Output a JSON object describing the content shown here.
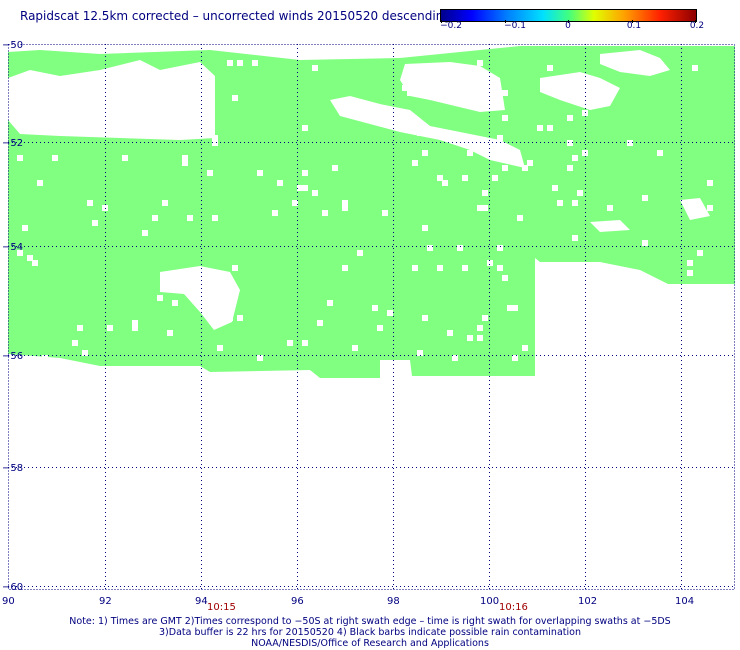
{
  "title": "Rapidscat 12.5km corrected – uncorrected winds 20150520 descending",
  "colorbar": {
    "labels": [
      "−0.2",
      "−0.1",
      "0",
      "0.1",
      "0.2"
    ],
    "min": -0.2,
    "max": 0.2
  },
  "axes": {
    "x_ticks": [
      "90",
      "92",
      "94",
      "96",
      "98",
      "100",
      "102",
      "104"
    ],
    "y_ticks": [
      "−50",
      "−52",
      "−54",
      "−56",
      "−58",
      "−60"
    ],
    "x_range": [
      90,
      105
    ],
    "y_range": [
      -50,
      -60
    ]
  },
  "time_labels": [
    {
      "text": "10:15",
      "lon": 94.4
    },
    {
      "text": "10:16",
      "lon": 100.6
    }
  ],
  "notes": {
    "line1": "Note: 1) Times are GMT 2)Times correspond to −50S at right swath edge – time is right swath for overlapping swaths at −5DS",
    "line2": "3)Data buffer is 22 hrs for 20150520 4) Black barbs indicate possible rain contamination",
    "line3": "NOAA/NESDIS/Office of Research and Applications"
  },
  "colors": {
    "data_fill": "#80ff80",
    "text": "#000080",
    "time_text": "#a00000",
    "grid": "#000080"
  }
}
